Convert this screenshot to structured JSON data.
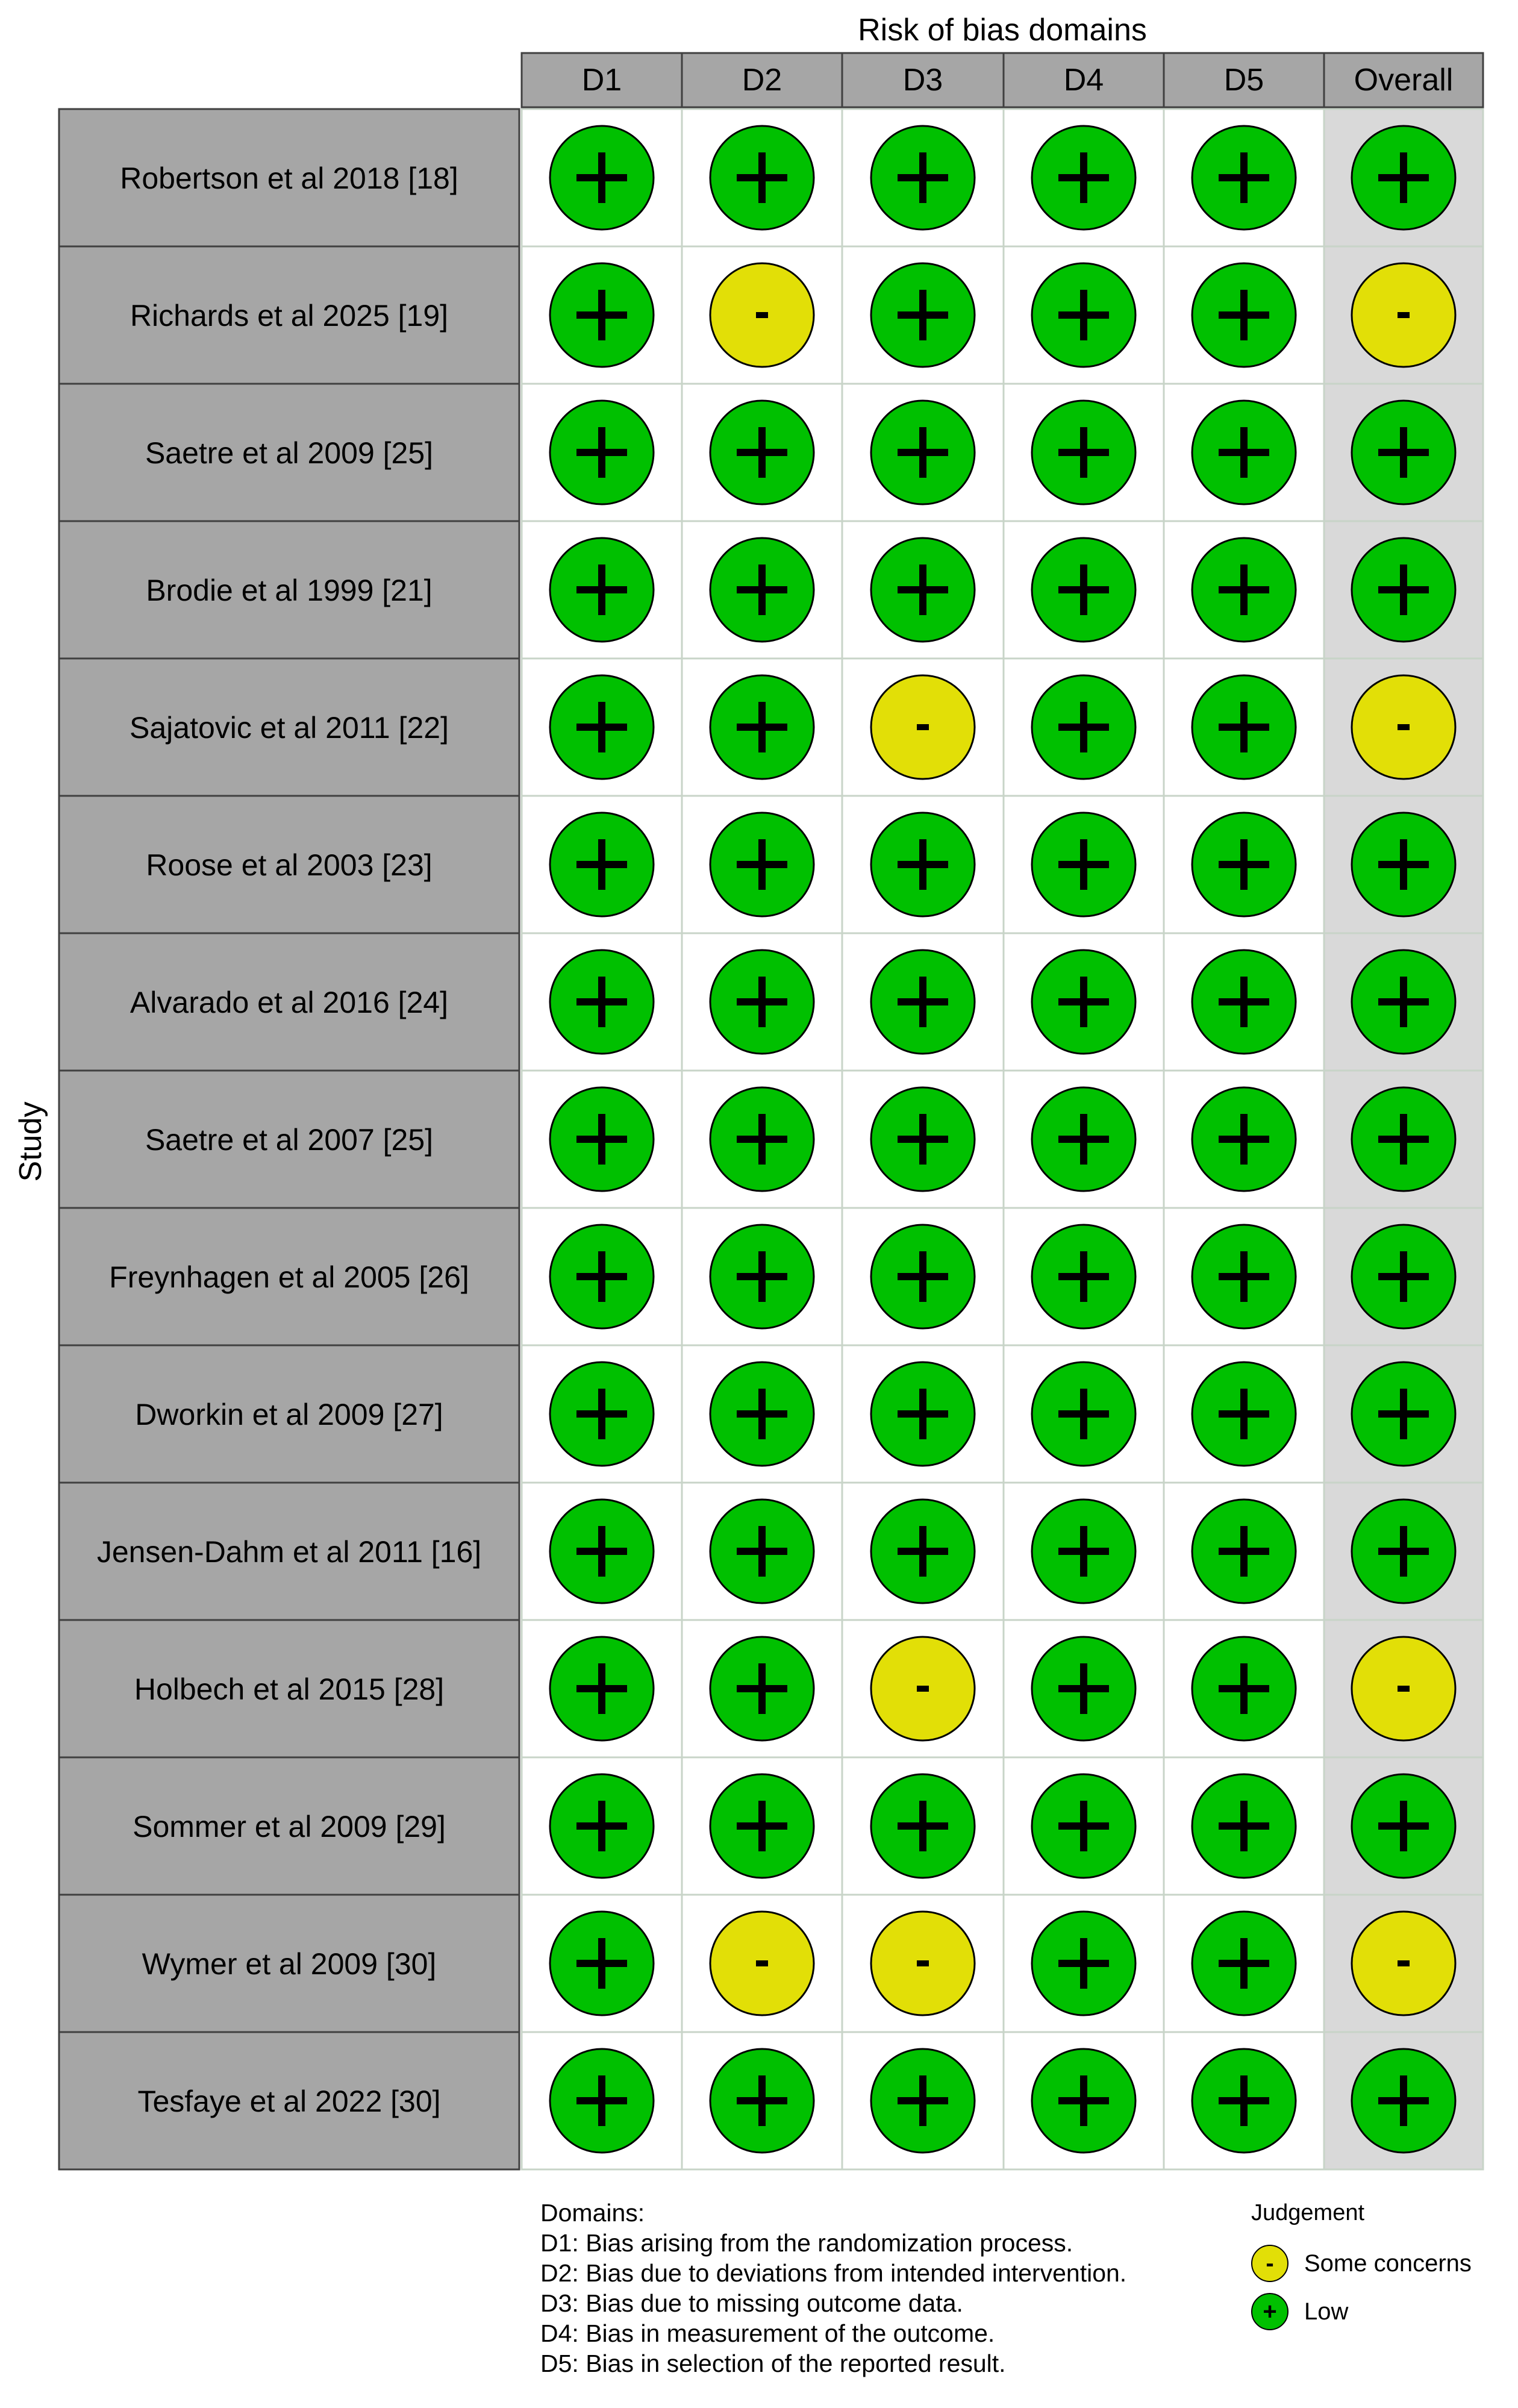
{
  "chart_data": {
    "type": "table",
    "title": "Risk of bias domains",
    "ylabel": "Study",
    "columns": [
      "D1",
      "D2",
      "D3",
      "D4",
      "D5",
      "Overall"
    ],
    "judgement_colors": {
      "+": "#00c000",
      "-": "#e2df07"
    },
    "rows": [
      {
        "study": "Robertson et al 2018 [18]",
        "values": [
          "+",
          "+",
          "+",
          "+",
          "+",
          "+"
        ]
      },
      {
        "study": "Richards et al 2025 [19]",
        "values": [
          "+",
          "-",
          "+",
          "+",
          "+",
          "-"
        ]
      },
      {
        "study": "Saetre et al 2009 [25]",
        "values": [
          "+",
          "+",
          "+",
          "+",
          "+",
          "+"
        ]
      },
      {
        "study": "Brodie et al 1999 [21]",
        "values": [
          "+",
          "+",
          "+",
          "+",
          "+",
          "+"
        ]
      },
      {
        "study": "Sajatovic et al 2011 [22]",
        "values": [
          "+",
          "+",
          "-",
          "+",
          "+",
          "-"
        ]
      },
      {
        "study": "Roose et al 2003 [23]",
        "values": [
          "+",
          "+",
          "+",
          "+",
          "+",
          "+"
        ]
      },
      {
        "study": "Alvarado et al 2016 [24]",
        "values": [
          "+",
          "+",
          "+",
          "+",
          "+",
          "+"
        ]
      },
      {
        "study": "Saetre et al 2007 [25]",
        "values": [
          "+",
          "+",
          "+",
          "+",
          "+",
          "+"
        ]
      },
      {
        "study": "Freynhagen et al 2005 [26]",
        "values": [
          "+",
          "+",
          "+",
          "+",
          "+",
          "+"
        ]
      },
      {
        "study": "Dworkin et al 2009 [27]",
        "values": [
          "+",
          "+",
          "+",
          "+",
          "+",
          "+"
        ]
      },
      {
        "study": "Jensen-Dahm et al 2011 [16]",
        "values": [
          "+",
          "+",
          "+",
          "+",
          "+",
          "+"
        ]
      },
      {
        "study": "Holbech et al 2015 [28]",
        "values": [
          "+",
          "+",
          "-",
          "+",
          "+",
          "-"
        ]
      },
      {
        "study": "Sommer et al 2009 [29]",
        "values": [
          "+",
          "+",
          "+",
          "+",
          "+",
          "+"
        ]
      },
      {
        "study": "Wymer et al 2009 [30]",
        "values": [
          "+",
          "-",
          "-",
          "+",
          "+",
          "-"
        ]
      },
      {
        "study": "Tesfaye et al 2022 [30]",
        "values": [
          "+",
          "+",
          "+",
          "+",
          "+",
          "+"
        ]
      }
    ]
  },
  "legend": {
    "domains_title": "Domains:",
    "domains": [
      "D1: Bias arising from the randomization process.",
      "D2: Bias due to deviations from intended intervention.",
      "D3: Bias due to missing outcome data.",
      "D4: Bias in measurement of the outcome.",
      "D5: Bias in selection of the reported result."
    ],
    "judgement_title": "Judgement",
    "judgements": [
      {
        "symbol": "-",
        "label": "Some concerns",
        "color": "#e2df07"
      },
      {
        "symbol": "+",
        "label": "Low",
        "color": "#00c000"
      }
    ]
  }
}
